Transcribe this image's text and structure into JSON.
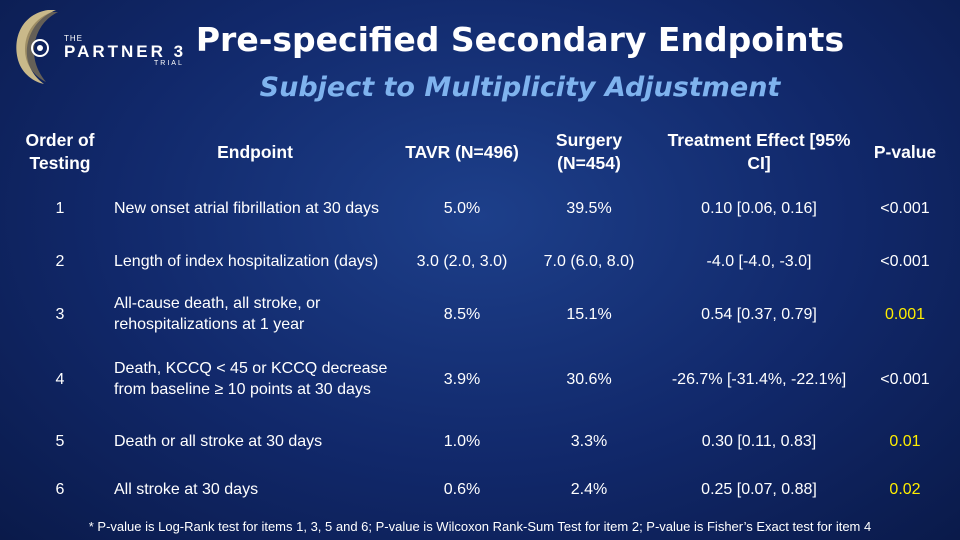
{
  "logo": {
    "the": "THE",
    "name": "PARTNER 3",
    "trial": "TRIAL"
  },
  "title": "Pre-specified Secondary Endpoints",
  "subtitle": "Subject to Multiplicity Adjustment",
  "headers": {
    "order": "Order of Testing",
    "endpoint": "Endpoint",
    "tavr": "TAVR (N=496)",
    "surgery": "Surgery (N=454)",
    "effect": "Treatment Effect [95% CI]",
    "pvalue": "P-value"
  },
  "rows": [
    {
      "order": "1",
      "endpoint": "New onset atrial fibrillation at 30 days",
      "tavr": "5.0%",
      "surgery": "39.5%",
      "effect": "0.10 [0.06, 0.16]",
      "pvalue": "<0.001"
    },
    {
      "order": "2",
      "endpoint": "Length of index hospitalization (days)",
      "tavr": "3.0 (2.0, 3.0)",
      "surgery": "7.0 (6.0, 8.0)",
      "effect": "-4.0 [-4.0, -3.0]",
      "pvalue": "<0.001"
    },
    {
      "order": "3",
      "endpoint": "All-cause death, all stroke, or rehospitalizations at 1 year",
      "tavr": "8.5%",
      "surgery": "15.1%",
      "effect": "0.54 [0.37, 0.79]",
      "pvalue": "0.001"
    },
    {
      "order": "4",
      "endpoint": "Death, KCCQ < 45 or KCCQ decrease from baseline ≥ 10 points at 30 days",
      "tavr": "3.9%",
      "surgery": "30.6%",
      "effect": "-26.7% [-31.4%, -22.1%]",
      "pvalue": "<0.001"
    },
    {
      "order": "5",
      "endpoint": "Death or all stroke at 30 days",
      "tavr": "1.0%",
      "surgery": "3.3%",
      "effect": "0.30 [0.11, 0.83]",
      "pvalue": "0.01"
    },
    {
      "order": "6",
      "endpoint": "All stroke at 30 days",
      "tavr": "0.6%",
      "surgery": "2.4%",
      "effect": "0.25 [0.07, 0.88]",
      "pvalue": "0.02"
    }
  ],
  "footnote": "* P-value is Log-Rank test for items 1, 3, 5 and 6; P-value is Wilcoxon Rank-Sum Test for item 2; P-value is Fisher’s Exact test for item 4",
  "colors": {
    "background": "#11286a",
    "subtitle": "#7fb3ee",
    "highlight_pvalue": "#ffee00",
    "text": "#ffffff"
  }
}
